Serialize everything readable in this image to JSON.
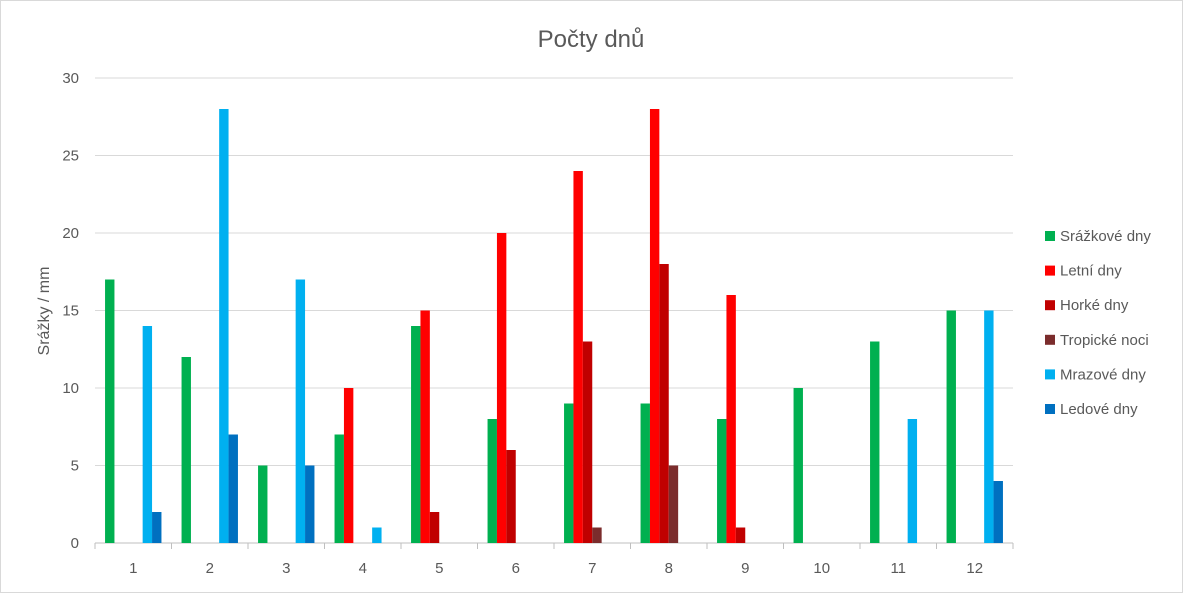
{
  "chart_data": {
    "type": "bar",
    "title": "Počty dnů",
    "xlabel": "",
    "ylabel": "Srážky / mm",
    "ylim": [
      0,
      30
    ],
    "yticks": [
      0,
      5,
      10,
      15,
      20,
      25,
      30
    ],
    "grid": true,
    "legend_position": "right",
    "categories": [
      "1",
      "2",
      "3",
      "4",
      "5",
      "6",
      "7",
      "8",
      "9",
      "10",
      "11",
      "12"
    ],
    "series": [
      {
        "name": "Srážkové dny",
        "color": "#00b050",
        "values": [
          17,
          12,
          5,
          7,
          14,
          8,
          9,
          9,
          8,
          10,
          13,
          15
        ]
      },
      {
        "name": "Letní dny",
        "color": "#ff0000",
        "values": [
          0,
          0,
          0,
          10,
          15,
          20,
          24,
          28,
          16,
          0,
          0,
          0
        ]
      },
      {
        "name": "Horké dny",
        "color": "#c00000",
        "values": [
          0,
          0,
          0,
          0,
          2,
          6,
          13,
          18,
          1,
          0,
          0,
          0
        ]
      },
      {
        "name": "Tropické noci",
        "color": "#7b2c2c",
        "values": [
          0,
          0,
          0,
          0,
          0,
          0,
          1,
          5,
          0,
          0,
          0,
          0
        ]
      },
      {
        "name": "Mrazové dny",
        "color": "#00b0f0",
        "values": [
          14,
          28,
          17,
          1,
          0,
          0,
          0,
          0,
          0,
          0,
          8,
          15
        ]
      },
      {
        "name": "Ledové dny",
        "color": "#0070c0",
        "values": [
          2,
          7,
          5,
          0,
          0,
          0,
          0,
          0,
          0,
          0,
          0,
          4
        ]
      }
    ]
  }
}
